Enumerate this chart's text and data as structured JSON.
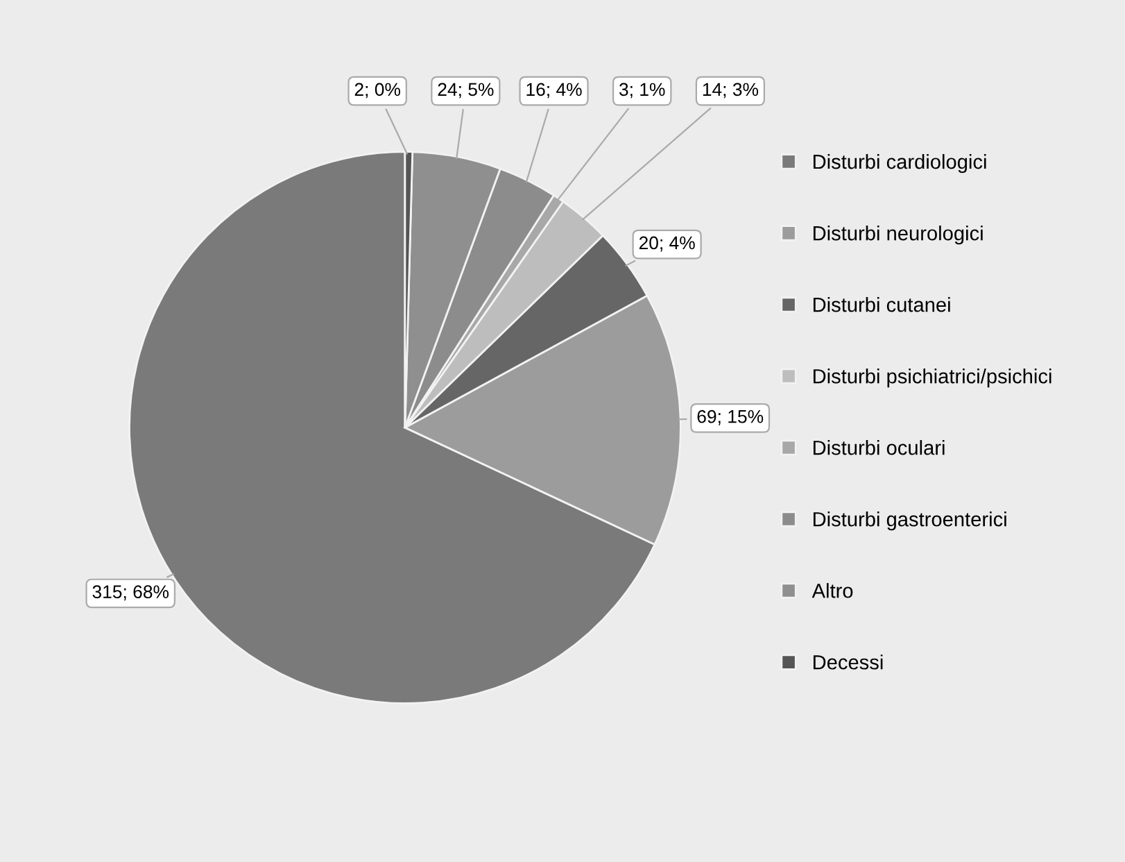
{
  "chart_data": {
    "type": "pie",
    "categories": [
      "Disturbi cardiologici",
      "Disturbi neurologici",
      "Disturbi cutanei",
      "Disturbi psichiatrici/psichici",
      "Disturbi oculari",
      "Disturbi gastroenterici",
      "Altro",
      "Decessi"
    ],
    "values": [
      315,
      69,
      20,
      14,
      3,
      16,
      24,
      2
    ],
    "value_labels": [
      "315; 68%",
      "69; 15%",
      "20; 4%",
      "14; 3%",
      "3; 1%",
      "16; 4%",
      "24; 5%",
      "2; 0%"
    ],
    "colors": [
      "#7a7a7a",
      "#9c9c9c",
      "#666666",
      "#bdbdbd",
      "#a8a8a8",
      "#8c8c8c",
      "#8f8f8f",
      "#555555"
    ],
    "legend": "right"
  }
}
